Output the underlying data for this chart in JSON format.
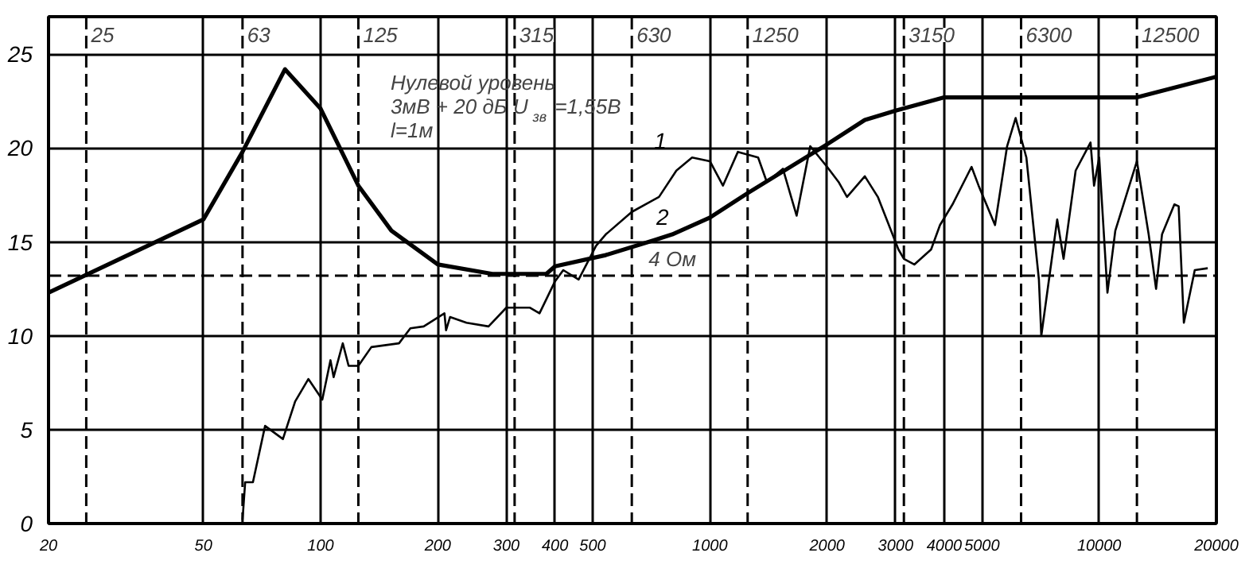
{
  "chart_data": {
    "type": "line",
    "annotations": [
      "Нулевой уровень",
      "3мВ + 20 дБ  U$_{зв}$=1,55В",
      "l=1м"
    ],
    "xlim": [
      20,
      20000
    ],
    "ylim": [
      0,
      27
    ],
    "xticks": [
      20,
      50,
      100,
      200,
      300,
      400,
      500,
      1000,
      2000,
      3000,
      4000,
      5000,
      10000,
      20000
    ],
    "yticks": [
      0,
      5,
      10,
      15,
      20,
      25
    ],
    "log": "x",
    "grid": true,
    "legend": false,
    "marker": "none",
    "line_style": "solid",
    "ref_lines": [
      {
        "axis": "y",
        "value": 13.2,
        "label": "4 Ом",
        "line_style": "dashed"
      },
      {
        "axis": "x",
        "value": 25,
        "label": "25",
        "line_style": "dashed"
      },
      {
        "axis": "x",
        "value": 63,
        "label": "63",
        "line_style": "dashed"
      },
      {
        "axis": "x",
        "value": 125,
        "label": "125",
        "line_style": "dashed"
      },
      {
        "axis": "x",
        "value": 315,
        "label": "315",
        "line_style": "dashed"
      },
      {
        "axis": "x",
        "value": 630,
        "label": "630",
        "line_style": "dashed"
      },
      {
        "axis": "x",
        "value": 1250,
        "label": "1250",
        "line_style": "dashed"
      },
      {
        "axis": "x",
        "value": 3150,
        "label": "3150",
        "line_style": "dashed"
      },
      {
        "axis": "x",
        "value": 6300,
        "label": "6300",
        "line_style": "dashed"
      },
      {
        "axis": "x",
        "value": 12500,
        "label": "12500",
        "line_style": "dashed"
      }
    ],
    "series": [
      {
        "name": "1",
        "color": "#000000",
        "x": [
          63,
          64,
          67,
          72,
          80,
          86,
          93,
          101,
          106,
          108,
          114,
          118,
          125,
          135,
          159,
          170,
          184,
          208,
          210,
          215,
          237,
          270,
          300,
          345,
          365,
          400,
          420,
          460,
          510,
          540,
          630,
          740,
          820,
          900,
          1000,
          1080,
          1180,
          1330,
          1400,
          1540,
          1670,
          1810,
          2000,
          2140,
          2250,
          2500,
          2700,
          3050,
          3150,
          3350,
          3700,
          3900,
          4200,
          4700,
          4900,
          5400,
          5800,
          6100,
          6500,
          7000,
          7100,
          7800,
          8100,
          8700,
          9500,
          9700,
          10000,
          10500,
          11000,
          12500,
          13400,
          14000,
          14500,
          15600,
          16000,
          16500,
          17600,
          19000
        ],
        "values": [
          0.2,
          2.2,
          2.2,
          5.2,
          4.5,
          6.5,
          7.7,
          6.6,
          8.7,
          7.8,
          9.6,
          8.4,
          8.4,
          9.4,
          9.6,
          10.4,
          10.5,
          11.2,
          10.3,
          11.0,
          10.7,
          10.5,
          11.5,
          11.5,
          11.2,
          12.9,
          13.5,
          13.0,
          14.8,
          15.4,
          16.6,
          17.4,
          18.8,
          19.5,
          19.3,
          18.0,
          19.8,
          19.5,
          18.2,
          18.9,
          16.4,
          20.1,
          19.0,
          18.2,
          17.4,
          18.5,
          17.4,
          14.6,
          14.1,
          13.8,
          14.6,
          15.9,
          17.0,
          19.0,
          18.0,
          15.9,
          20.1,
          21.6,
          19.5,
          13.0,
          10.0,
          16.2,
          14.1,
          18.8,
          20.3,
          18.0,
          19.5,
          12.3,
          15.6,
          19.3,
          15.4,
          12.5,
          15.4,
          17.0,
          16.9,
          10.7,
          13.5,
          13.6
        ]
      },
      {
        "name": "2",
        "color": "#000000",
        "x": [
          20,
          50,
          63,
          81,
          100,
          125,
          152,
          200,
          276,
          380,
          400,
          540,
          720,
          800,
          1000,
          1250,
          2000,
          2500,
          3000,
          4000,
          6300,
          10000,
          12500,
          20000
        ],
        "values": [
          12.3,
          16.2,
          19.8,
          24.2,
          22.1,
          18.0,
          15.6,
          13.8,
          13.3,
          13.3,
          13.7,
          14.3,
          15.1,
          15.4,
          16.3,
          17.6,
          20.2,
          21.5,
          22.0,
          22.7,
          22.7,
          22.7,
          22.7,
          23.8
        ]
      }
    ]
  }
}
